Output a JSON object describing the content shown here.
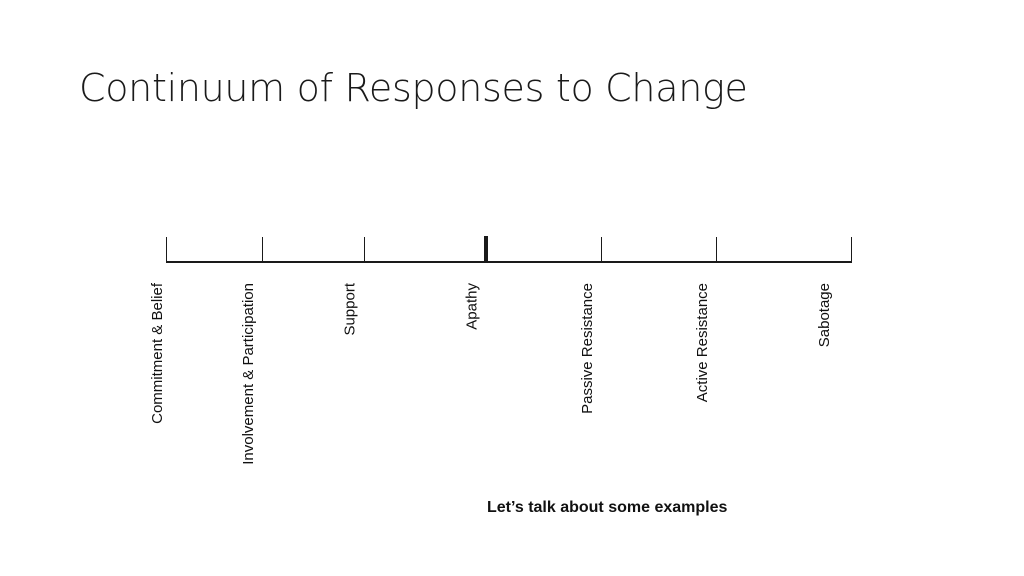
{
  "slide": {
    "title": "Continuum of Responses to Change",
    "footer": "Let’s talk about some examples"
  },
  "continuum": {
    "points": [
      {
        "label": "Commitment & Belief",
        "emphasis": false
      },
      {
        "label": "Involvement & Participation",
        "emphasis": false
      },
      {
        "label": "Support",
        "emphasis": false
      },
      {
        "label": "Apathy",
        "emphasis": true
      },
      {
        "label": "Passive Resistance",
        "emphasis": false
      },
      {
        "label": "Active Resistance",
        "emphasis": false
      },
      {
        "label": "Sabotage",
        "emphasis": false
      }
    ]
  }
}
